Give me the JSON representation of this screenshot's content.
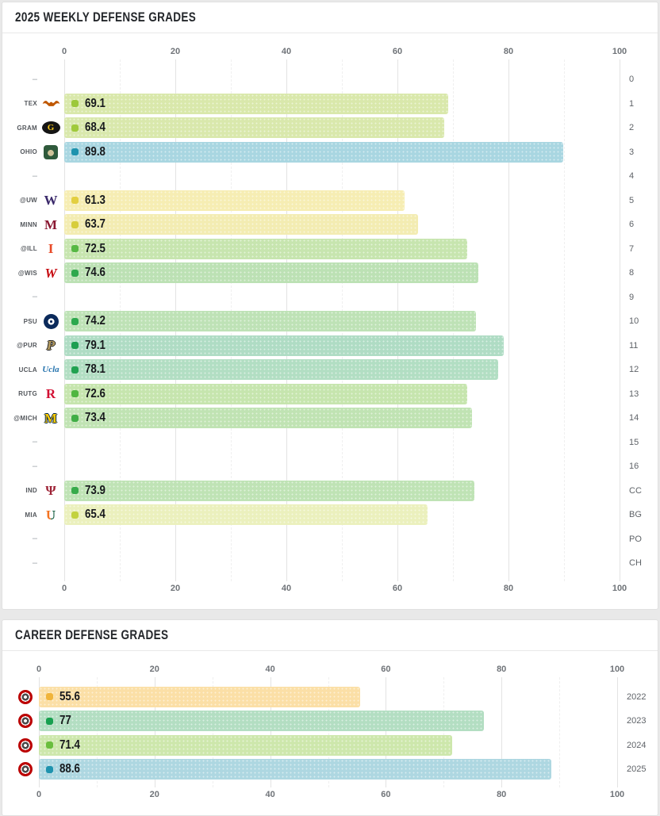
{
  "page": {
    "background": "#e9e9e9",
    "card_background": "#ffffff",
    "card_border": "#e0e0e0"
  },
  "chart_data": [
    {
      "type": "bar",
      "orientation": "horizontal",
      "title": "2025 WEEKLY DEFENSE GRADES",
      "xlim": [
        0,
        100
      ],
      "x_ticks": [
        0,
        20,
        40,
        60,
        80,
        100
      ],
      "grid_step": 10,
      "grid": true,
      "empty_marker": "–",
      "rows": [
        {
          "right_label": "0",
          "team": null,
          "value": null
        },
        {
          "right_label": "1",
          "team": "TEX",
          "logo": "texas-longhorns-logo",
          "value": 69.1,
          "label": "69.1",
          "bar_color": "#d9e8ab",
          "dot_color": "#9cc83a"
        },
        {
          "right_label": "2",
          "team": "GRAM",
          "logo": "grambling-tigers-logo",
          "value": 68.4,
          "label": "68.4",
          "bar_color": "#d9e8ac",
          "dot_color": "#a0ca3b"
        },
        {
          "right_label": "3",
          "team": "OHIO",
          "logo": "ohio-bobcats-logo",
          "value": 89.8,
          "label": "89.8",
          "bar_color": "#a9d6e1",
          "dot_color": "#1e93ae"
        },
        {
          "right_label": "4",
          "team": null,
          "value": null
        },
        {
          "right_label": "5",
          "team": "@UW",
          "logo": "washington-huskies-logo",
          "value": 61.3,
          "label": "61.3",
          "bar_color": "#f6edb3",
          "dot_color": "#e3cf41"
        },
        {
          "right_label": "6",
          "team": "MINN",
          "logo": "minnesota-golden-gophers-logo",
          "value": 63.7,
          "label": "63.7",
          "bar_color": "#f3ecb2",
          "dot_color": "#d7cd3c"
        },
        {
          "right_label": "7",
          "team": "@ILL",
          "logo": "illinois-fighting-illini-logo",
          "value": 72.5,
          "label": "72.5",
          "bar_color": "#c7e5af",
          "dot_color": "#57b844"
        },
        {
          "right_label": "8",
          "team": "@WIS",
          "logo": "wisconsin-badgers-logo",
          "value": 74.6,
          "label": "74.6",
          "bar_color": "#bce1b4",
          "dot_color": "#2fa84d"
        },
        {
          "right_label": "9",
          "team": null,
          "value": null
        },
        {
          "right_label": "10",
          "team": "PSU",
          "logo": "penn-state-nittany-lions-logo",
          "value": 74.2,
          "label": "74.2",
          "bar_color": "#bee2b6",
          "dot_color": "#2ca84d"
        },
        {
          "right_label": "11",
          "team": "@PUR",
          "logo": "purdue-boilermakers-logo",
          "value": 79.1,
          "label": "79.1",
          "bar_color": "#afdcc4",
          "dot_color": "#1e9e51"
        },
        {
          "right_label": "12",
          "team": "UCLA",
          "logo": "ucla-bruins-logo",
          "value": 78.1,
          "label": "78.1",
          "bar_color": "#b2dec3",
          "dot_color": "#22a251"
        },
        {
          "right_label": "13",
          "team": "RUTG",
          "logo": "rutgers-scarlet-knights-logo",
          "value": 72.6,
          "label": "72.6",
          "bar_color": "#c6e5ae",
          "dot_color": "#4fb640"
        },
        {
          "right_label": "14",
          "team": "@MICH",
          "logo": "michigan-wolverines-logo",
          "value": 73.4,
          "label": "73.4",
          "bar_color": "#c0e3b3",
          "dot_color": "#40ae46"
        },
        {
          "right_label": "15",
          "team": null,
          "value": null
        },
        {
          "right_label": "16",
          "team": null,
          "value": null
        },
        {
          "right_label": "CC",
          "team": "IND",
          "logo": "indiana-hoosiers-logo",
          "value": 73.9,
          "label": "73.9",
          "bar_color": "#bfe3b5",
          "dot_color": "#38ab4b"
        },
        {
          "right_label": "BG",
          "team": "MIA",
          "logo": "miami-hurricanes-logo",
          "value": 65.4,
          "label": "65.4",
          "bar_color": "#ebf0bd",
          "dot_color": "#c2d23e"
        },
        {
          "right_label": "PO",
          "team": null,
          "value": null
        },
        {
          "right_label": "CH",
          "team": null,
          "value": null
        }
      ]
    },
    {
      "type": "bar",
      "orientation": "horizontal",
      "title": "CAREER DEFENSE GRADES",
      "xlim": [
        0,
        100
      ],
      "x_ticks": [
        0,
        20,
        40,
        60,
        80,
        100
      ],
      "grid_step": 10,
      "grid": true,
      "empty_marker": "–",
      "rows": [
        {
          "right_label": "2022",
          "logo": "ohio-state-buckeyes-logo",
          "value": 55.6,
          "label": "55.6",
          "bar_color": "#fbdfa6",
          "dot_color": "#f0b43a"
        },
        {
          "right_label": "2023",
          "logo": "ohio-state-buckeyes-logo",
          "value": 77,
          "label": "77",
          "bar_color": "#b3dec2",
          "dot_color": "#17a050"
        },
        {
          "right_label": "2024",
          "logo": "ohio-state-buckeyes-logo",
          "value": 71.4,
          "label": "71.4",
          "bar_color": "#cde7ac",
          "dot_color": "#6abe3e"
        },
        {
          "right_label": "2025",
          "logo": "ohio-state-buckeyes-logo",
          "value": 88.6,
          "label": "88.6",
          "bar_color": "#aed7e1",
          "dot_color": "#1e93ae"
        }
      ]
    }
  ],
  "logos": {
    "texas-longhorns-logo": {
      "kind": "longhorn",
      "color": "#bf5700"
    },
    "grambling-tigers-logo": {
      "kind": "badge",
      "shape": "oval",
      "bg": "#151515",
      "text": "G",
      "text_color": "#f3c51b"
    },
    "ohio-bobcats-logo": {
      "kind": "badge",
      "shape": "rounded",
      "bg": "#2f5a3c",
      "center_color": "#cfc39a"
    },
    "washington-huskies-logo": {
      "kind": "letter",
      "text": "W",
      "color": "#3b2a6b"
    },
    "minnesota-golden-gophers-logo": {
      "kind": "letter",
      "text": "M",
      "color": "#8a1832"
    },
    "illinois-fighting-illini-logo": {
      "kind": "letter",
      "text": "I",
      "color": "#e84a27"
    },
    "wisconsin-badgers-logo": {
      "kind": "letter",
      "text": "W",
      "color": "#c5050c",
      "italic": true
    },
    "penn-state-nittany-lions-logo": {
      "kind": "psu-circle",
      "bg": "#0b2a5b"
    },
    "purdue-boilermakers-logo": {
      "kind": "letter",
      "text": "P",
      "color": "#b9a064",
      "italic": true,
      "outline": "#1a1a1a"
    },
    "ucla-bruins-logo": {
      "kind": "script",
      "text": "Ucla",
      "color": "#2774ae"
    },
    "rutgers-scarlet-knights-logo": {
      "kind": "letter",
      "text": "R",
      "color": "#d21033"
    },
    "michigan-wolverines-logo": {
      "kind": "letter",
      "text": "M",
      "color": "#ffcb05",
      "outline": "#00274c"
    },
    "indiana-hoosiers-logo": {
      "kind": "letter",
      "text": "Ψ",
      "color": "#9d2235"
    },
    "miami-hurricanes-logo": {
      "kind": "split-letter",
      "text": "U",
      "color_left": "#f47321",
      "color_right": "#005030"
    },
    "ohio-state-buckeyes-logo": {
      "kind": "ring",
      "ring_color": "#bb0000",
      "inner_color": "#4a4a4a"
    }
  }
}
